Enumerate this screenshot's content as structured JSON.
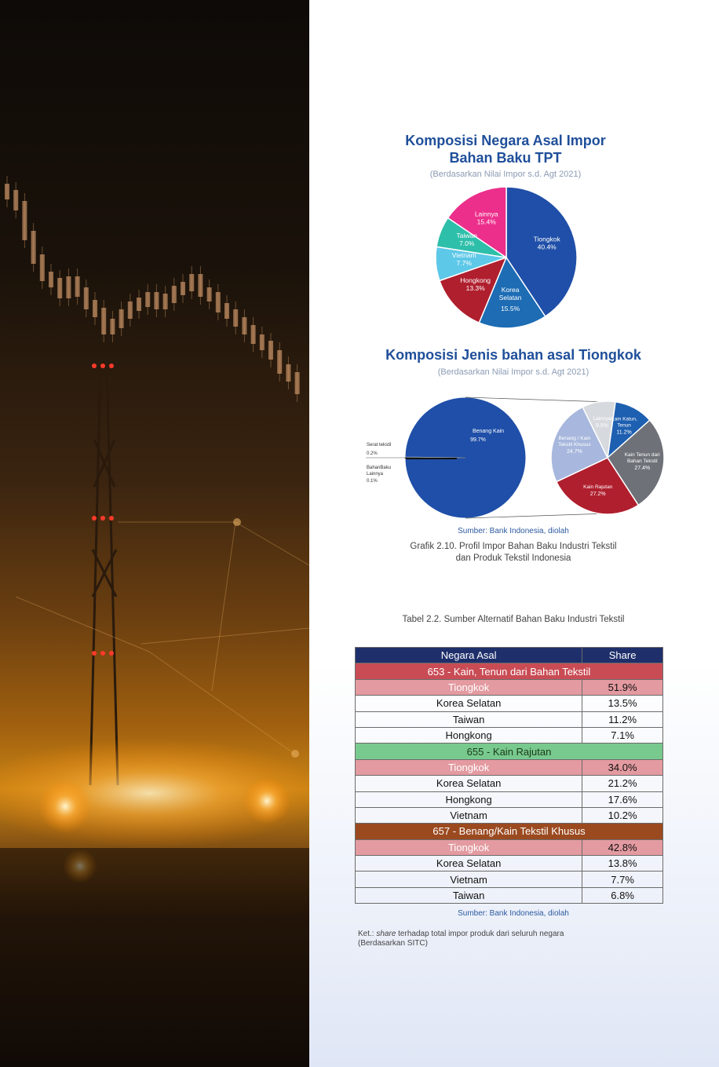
{
  "colors": {
    "tiongkok": "#1f4fa8",
    "korea": "#1d6cb4",
    "hongkong": "#b01f2e",
    "vietnam": "#5ec8e8",
    "taiwan": "#2ebfaa",
    "lainnya": "#ec2f8b",
    "table_header": "#1f2f6b",
    "group_653": "#c94c55",
    "group_655": "#78c98e",
    "group_657": "#9b4a20",
    "tiongkok_row": "#e39aa0"
  },
  "chart_data": [
    {
      "type": "pie",
      "title": "Komposisi Negara Asal Impor Bahan Baku TPT",
      "subtitle": "(Berdasarkan Nilai Impor s.d. Agt 2021)",
      "slices": [
        {
          "label": "Tiongkok",
          "value": 40.4,
          "value_label": "40.4%",
          "color": "#1f4fa8"
        },
        {
          "label": "Korea Selatan",
          "value": 15.5,
          "value_label": "15.5%",
          "color": "#1d6cb4"
        },
        {
          "label": "Hongkong",
          "value": 13.3,
          "value_label": "13.3%",
          "color": "#b01f2e"
        },
        {
          "label": "Vietnam",
          "value": 7.7,
          "value_label": "7.7%",
          "color": "#5ec8e8"
        },
        {
          "label": "Taiwan",
          "value": 7.0,
          "value_label": "7.0%",
          "color": "#2ebfaa"
        },
        {
          "label": "Lainnya",
          "value": 15.4,
          "value_label": "15.4%",
          "color": "#ec2f8b"
        }
      ]
    },
    {
      "type": "pie",
      "title": "Komposisi Jenis bahan asal Tiongkok",
      "subtitle": "(Berdasarkan Nilai Impor s.d. Agt 2021)",
      "slices": [
        {
          "label": "Benang Kain",
          "value": 99.7,
          "value_label": "99.7%",
          "color": "#1f4fa8"
        },
        {
          "label": "Serat tekstil",
          "value": 0.2,
          "value_label": "0.2%",
          "color": "#333333"
        },
        {
          "label": "BahanBaku Lainnya",
          "value": 0.1,
          "value_label": "0.1%",
          "color": "#6a7a8a"
        }
      ]
    },
    {
      "type": "pie",
      "title": "",
      "slices": [
        {
          "label": "Kain Katun, Tenun",
          "value": 11.2,
          "value_label": "11.2%",
          "color": "#1d5fb0"
        },
        {
          "label": "Kain Tenun dari Bahan Tekstil",
          "value": 27.4,
          "value_label": "27.4%",
          "color": "#6e7278"
        },
        {
          "label": "Kain Rajutan",
          "value": 27.2,
          "value_label": "27.2%",
          "color": "#b01f2e"
        },
        {
          "label": "Benang / Kain Tekstil Khusus",
          "value": 24.7,
          "value_label": "24.7%",
          "color": "#a7b7dd"
        },
        {
          "label": "Lainnya",
          "value": 9.5,
          "value_label": "9.5%",
          "color": "#d6d9de"
        }
      ]
    },
    {
      "type": "table",
      "title": "Tabel 2.2. Sumber Alternatif Bahan Baku Industri Tekstil",
      "columns": [
        "Negara Asal",
        "Share"
      ],
      "groups": [
        {
          "name": "653 - Kain, Tenun dari Bahan Tekstil",
          "color": "#c94c55",
          "rows": [
            {
              "country": "Tiongkok",
              "share": "51.9%",
              "highlight": true
            },
            {
              "country": "Korea Selatan",
              "share": "13.5%"
            },
            {
              "country": "Taiwan",
              "share": "11.2%"
            },
            {
              "country": "Hongkong",
              "share": "7.1%"
            }
          ]
        },
        {
          "name": "655 - Kain Rajutan",
          "color": "#78c98e",
          "rows": [
            {
              "country": "Tiongkok",
              "share": "34.0%",
              "highlight": true
            },
            {
              "country": "Korea Selatan",
              "share": "21.2%"
            },
            {
              "country": "Hongkong",
              "share": "17.6%"
            },
            {
              "country": "Vietnam",
              "share": "10.2%"
            }
          ]
        },
        {
          "name": "657 - Benang/Kain Tekstil Khusus",
          "color": "#9b4a20",
          "rows": [
            {
              "country": "Tiongkok",
              "share": "42.8%",
              "highlight": true
            },
            {
              "country": "Korea Selatan",
              "share": "13.8%"
            },
            {
              "country": "Vietnam",
              "share": "7.7%"
            },
            {
              "country": "Taiwan",
              "share": "6.8%"
            }
          ]
        }
      ]
    }
  ],
  "chart1": {
    "title_line1": "Komposisi Negara Asal Impor",
    "title_line2": "Bahan Baku TPT",
    "subtitle": "(Berdasarkan Nilai Impor s.d. Agt 2021)"
  },
  "chart2": {
    "title": "Komposisi Jenis bahan asal Tiongkok",
    "subtitle": "(Berdasarkan Nilai Impor s.d. Agt 2021)"
  },
  "source1": "Sumber: Bank Indonesia, diolah",
  "caption_line1": "Grafik 2.10. Profil Impor Bahan Baku Industri Tekstil",
  "caption_line2": "dan Produk Tekstil Indonesia",
  "table_title": "Tabel 2.2. Sumber Alternatif Bahan Baku Industri Tekstil",
  "source2": "Sumber: Bank Indonesia, diolah",
  "note_prefix": "Ket.: ",
  "note_italic": "share",
  "note_rest": " terhadap total impor produk dari seluruh negara",
  "note_line2": "(Berdasarkan SITC)"
}
